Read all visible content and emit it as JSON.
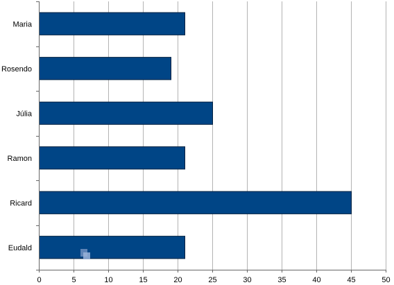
{
  "chart_data": {
    "type": "bar",
    "orientation": "horizontal",
    "categories": [
      "Maria",
      "Rosendo",
      "Júlia",
      "Ramon",
      "Ricard",
      "Eudald"
    ],
    "values": [
      21,
      19,
      25,
      21,
      45,
      21
    ],
    "xlim": [
      0,
      50
    ],
    "xticks": [
      0,
      5,
      10,
      15,
      20,
      25,
      30,
      35,
      40,
      45,
      50
    ],
    "grid": "vertical",
    "legend": "none",
    "colors": {
      "bar": "#004586",
      "bar_stroke": "#001f3f",
      "grid": "#b3b3b3",
      "axis": "#666666"
    }
  }
}
